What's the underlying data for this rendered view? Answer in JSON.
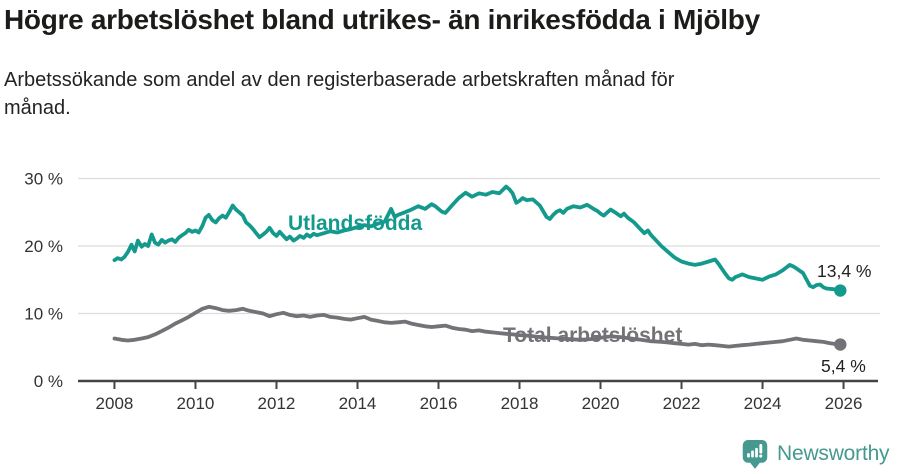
{
  "header": {
    "title": "Högre arbetslöshet bland utrikes- än inrikesfödda i Mjölby",
    "subtitle": "Arbetssökande som andel av den registerbaserade arbetskraften månad för månad."
  },
  "footer": {
    "brand": "Newsworthy"
  },
  "colors": {
    "teal": "#149a8d",
    "gray": "#737377",
    "axis": "#444444",
    "grid": "#dcdcdc",
    "tick_label": "#333333",
    "value_label": "#222222",
    "brand_teal": "#45998f"
  },
  "chart_data": {
    "type": "line",
    "title": "Högre arbetslöshet bland utrikes- än inrikesfödda i Mjölby",
    "subtitle": "Arbetssökande som andel av den registerbaserade arbetskraften månad för månad.",
    "xlabel": "",
    "ylabel": "",
    "grid": "horizontal",
    "legend_position": "inline-labels",
    "xlim": [
      2007.1,
      2026.9
    ],
    "ylim": [
      0,
      30
    ],
    "x_ticks": [
      2008,
      2010,
      2012,
      2014,
      2016,
      2018,
      2020,
      2022,
      2024,
      2026
    ],
    "x_tick_labels": [
      "2008",
      "2010",
      "2012",
      "2014",
      "2016",
      "2018",
      "2020",
      "2022",
      "2024",
      "2026"
    ],
    "y_ticks": [
      0,
      10,
      20,
      30
    ],
    "y_tick_labels": [
      "0 %",
      "10 %",
      "20 %",
      "30 %"
    ],
    "series": [
      {
        "name": "Utlandsfödda",
        "label": "Utlandsfödda",
        "color_key": "teal",
        "end_label": "13,4 %",
        "end_value": 13.4,
        "points": [
          [
            2008.0,
            17.9
          ],
          [
            2008.08,
            18.2
          ],
          [
            2008.17,
            18.0
          ],
          [
            2008.25,
            18.4
          ],
          [
            2008.33,
            19.1
          ],
          [
            2008.42,
            20.2
          ],
          [
            2008.5,
            19.2
          ],
          [
            2008.58,
            20.8
          ],
          [
            2008.67,
            19.9
          ],
          [
            2008.75,
            20.3
          ],
          [
            2008.83,
            20.0
          ],
          [
            2008.92,
            21.7
          ],
          [
            2009.0,
            20.5
          ],
          [
            2009.08,
            20.2
          ],
          [
            2009.17,
            20.9
          ],
          [
            2009.25,
            20.5
          ],
          [
            2009.33,
            20.8
          ],
          [
            2009.42,
            21.0
          ],
          [
            2009.5,
            20.6
          ],
          [
            2009.58,
            21.2
          ],
          [
            2009.67,
            21.6
          ],
          [
            2009.75,
            21.9
          ],
          [
            2009.83,
            22.4
          ],
          [
            2009.92,
            22.1
          ],
          [
            2010.0,
            22.3
          ],
          [
            2010.08,
            22.0
          ],
          [
            2010.17,
            23.0
          ],
          [
            2010.25,
            24.2
          ],
          [
            2010.33,
            24.6
          ],
          [
            2010.42,
            23.8
          ],
          [
            2010.5,
            23.5
          ],
          [
            2010.58,
            24.1
          ],
          [
            2010.67,
            24.5
          ],
          [
            2010.75,
            24.2
          ],
          [
            2010.83,
            25.0
          ],
          [
            2010.92,
            26.0
          ],
          [
            2011.0,
            25.4
          ],
          [
            2011.08,
            25.0
          ],
          [
            2011.17,
            24.5
          ],
          [
            2011.25,
            23.5
          ],
          [
            2011.33,
            23.1
          ],
          [
            2011.42,
            22.5
          ],
          [
            2011.5,
            21.9
          ],
          [
            2011.58,
            21.3
          ],
          [
            2011.67,
            21.7
          ],
          [
            2011.75,
            22.1
          ],
          [
            2011.83,
            22.7
          ],
          [
            2011.92,
            21.9
          ],
          [
            2012.0,
            21.5
          ],
          [
            2012.08,
            22.1
          ],
          [
            2012.17,
            21.5
          ],
          [
            2012.25,
            21.0
          ],
          [
            2012.33,
            21.4
          ],
          [
            2012.42,
            20.8
          ],
          [
            2012.5,
            21.1
          ],
          [
            2012.58,
            21.5
          ],
          [
            2012.67,
            21.2
          ],
          [
            2012.75,
            21.7
          ],
          [
            2012.83,
            21.4
          ],
          [
            2012.92,
            21.8
          ],
          [
            2013.0,
            21.6
          ],
          [
            2013.17,
            21.9
          ],
          [
            2013.33,
            22.2
          ],
          [
            2013.5,
            22.0
          ],
          [
            2013.67,
            22.3
          ],
          [
            2013.83,
            22.5
          ],
          [
            2014.0,
            22.8
          ],
          [
            2014.17,
            23.1
          ],
          [
            2014.33,
            22.9
          ],
          [
            2014.5,
            23.3
          ],
          [
            2014.67,
            23.6
          ],
          [
            2014.83,
            25.5
          ],
          [
            2014.92,
            24.3
          ],
          [
            2015.0,
            24.6
          ],
          [
            2015.17,
            25.0
          ],
          [
            2015.33,
            25.4
          ],
          [
            2015.5,
            25.9
          ],
          [
            2015.67,
            25.5
          ],
          [
            2015.83,
            26.2
          ],
          [
            2015.92,
            25.9
          ],
          [
            2016.0,
            25.5
          ],
          [
            2016.08,
            25.1
          ],
          [
            2016.17,
            24.9
          ],
          [
            2016.33,
            26.0
          ],
          [
            2016.5,
            27.1
          ],
          [
            2016.67,
            27.9
          ],
          [
            2016.83,
            27.3
          ],
          [
            2017.0,
            27.8
          ],
          [
            2017.17,
            27.6
          ],
          [
            2017.33,
            28.0
          ],
          [
            2017.5,
            27.8
          ],
          [
            2017.67,
            28.8
          ],
          [
            2017.75,
            28.4
          ],
          [
            2017.83,
            27.8
          ],
          [
            2017.92,
            26.4
          ],
          [
            2018.0,
            26.7
          ],
          [
            2018.08,
            27.1
          ],
          [
            2018.17,
            26.8
          ],
          [
            2018.33,
            26.9
          ],
          [
            2018.5,
            26.0
          ],
          [
            2018.67,
            24.3
          ],
          [
            2018.75,
            24.0
          ],
          [
            2018.83,
            24.6
          ],
          [
            2018.92,
            25.1
          ],
          [
            2019.0,
            25.3
          ],
          [
            2019.08,
            24.9
          ],
          [
            2019.17,
            25.5
          ],
          [
            2019.33,
            25.9
          ],
          [
            2019.5,
            25.7
          ],
          [
            2019.67,
            26.1
          ],
          [
            2019.83,
            25.5
          ],
          [
            2019.92,
            25.2
          ],
          [
            2020.0,
            24.8
          ],
          [
            2020.08,
            24.5
          ],
          [
            2020.17,
            25.0
          ],
          [
            2020.25,
            25.4
          ],
          [
            2020.33,
            25.1
          ],
          [
            2020.5,
            24.4
          ],
          [
            2020.58,
            24.8
          ],
          [
            2020.67,
            24.2
          ],
          [
            2020.83,
            23.5
          ],
          [
            2020.92,
            22.9
          ],
          [
            2021.0,
            22.4
          ],
          [
            2021.08,
            21.9
          ],
          [
            2021.17,
            22.3
          ],
          [
            2021.25,
            21.6
          ],
          [
            2021.33,
            21.1
          ],
          [
            2021.5,
            20.0
          ],
          [
            2021.67,
            19.1
          ],
          [
            2021.83,
            18.3
          ],
          [
            2022.0,
            17.7
          ],
          [
            2022.17,
            17.4
          ],
          [
            2022.33,
            17.2
          ],
          [
            2022.5,
            17.4
          ],
          [
            2022.67,
            17.7
          ],
          [
            2022.83,
            18.0
          ],
          [
            2022.92,
            17.3
          ],
          [
            2023.0,
            16.6
          ],
          [
            2023.08,
            15.9
          ],
          [
            2023.17,
            15.2
          ],
          [
            2023.25,
            15.0
          ],
          [
            2023.33,
            15.4
          ],
          [
            2023.5,
            15.8
          ],
          [
            2023.67,
            15.4
          ],
          [
            2023.83,
            15.2
          ],
          [
            2024.0,
            15.0
          ],
          [
            2024.17,
            15.5
          ],
          [
            2024.33,
            15.8
          ],
          [
            2024.5,
            16.4
          ],
          [
            2024.67,
            17.2
          ],
          [
            2024.75,
            17.0
          ],
          [
            2024.83,
            16.7
          ],
          [
            2025.0,
            16.0
          ],
          [
            2025.08,
            15.1
          ],
          [
            2025.17,
            14.1
          ],
          [
            2025.25,
            13.9
          ],
          [
            2025.33,
            14.2
          ],
          [
            2025.42,
            14.3
          ],
          [
            2025.5,
            13.9
          ],
          [
            2025.58,
            13.7
          ],
          [
            2025.75,
            13.6
          ],
          [
            2025.92,
            13.4
          ]
        ]
      },
      {
        "name": "Total arbetslöshet",
        "label": "Total arbetslöshet",
        "color_key": "gray",
        "end_label": "5,4 %",
        "end_value": 5.4,
        "points": [
          [
            2008.0,
            6.3
          ],
          [
            2008.17,
            6.1
          ],
          [
            2008.33,
            6.0
          ],
          [
            2008.5,
            6.1
          ],
          [
            2008.67,
            6.3
          ],
          [
            2008.83,
            6.5
          ],
          [
            2009.0,
            6.9
          ],
          [
            2009.17,
            7.4
          ],
          [
            2009.33,
            7.9
          ],
          [
            2009.5,
            8.5
          ],
          [
            2009.67,
            9.0
          ],
          [
            2009.83,
            9.5
          ],
          [
            2010.0,
            10.1
          ],
          [
            2010.17,
            10.7
          ],
          [
            2010.33,
            11.0
          ],
          [
            2010.5,
            10.8
          ],
          [
            2010.67,
            10.5
          ],
          [
            2010.83,
            10.4
          ],
          [
            2011.0,
            10.5
          ],
          [
            2011.17,
            10.7
          ],
          [
            2011.33,
            10.4
          ],
          [
            2011.5,
            10.2
          ],
          [
            2011.67,
            10.0
          ],
          [
            2011.83,
            9.6
          ],
          [
            2012.0,
            9.9
          ],
          [
            2012.17,
            10.1
          ],
          [
            2012.33,
            9.8
          ],
          [
            2012.5,
            9.6
          ],
          [
            2012.67,
            9.7
          ],
          [
            2012.83,
            9.5
          ],
          [
            2013.0,
            9.7
          ],
          [
            2013.17,
            9.8
          ],
          [
            2013.33,
            9.5
          ],
          [
            2013.5,
            9.4
          ],
          [
            2013.67,
            9.2
          ],
          [
            2013.83,
            9.1
          ],
          [
            2014.0,
            9.3
          ],
          [
            2014.17,
            9.5
          ],
          [
            2014.33,
            9.1
          ],
          [
            2014.5,
            8.9
          ],
          [
            2014.67,
            8.7
          ],
          [
            2014.83,
            8.6
          ],
          [
            2015.0,
            8.7
          ],
          [
            2015.17,
            8.8
          ],
          [
            2015.33,
            8.5
          ],
          [
            2015.5,
            8.3
          ],
          [
            2015.67,
            8.1
          ],
          [
            2015.83,
            8.0
          ],
          [
            2016.0,
            8.1
          ],
          [
            2016.17,
            8.2
          ],
          [
            2016.33,
            7.9
          ],
          [
            2016.5,
            7.7
          ],
          [
            2016.67,
            7.6
          ],
          [
            2016.83,
            7.4
          ],
          [
            2017.0,
            7.5
          ],
          [
            2017.17,
            7.3
          ],
          [
            2017.33,
            7.2
          ],
          [
            2017.5,
            7.1
          ],
          [
            2017.67,
            7.0
          ],
          [
            2017.83,
            6.9
          ],
          [
            2018.0,
            6.8
          ],
          [
            2018.25,
            6.7
          ],
          [
            2018.5,
            6.5
          ],
          [
            2018.75,
            6.4
          ],
          [
            2019.0,
            6.3
          ],
          [
            2019.25,
            6.2
          ],
          [
            2019.5,
            6.1
          ],
          [
            2019.75,
            6.2
          ],
          [
            2020.0,
            6.4
          ],
          [
            2020.25,
            6.6
          ],
          [
            2020.5,
            6.5
          ],
          [
            2020.75,
            6.3
          ],
          [
            2021.0,
            6.1
          ],
          [
            2021.25,
            5.9
          ],
          [
            2021.5,
            5.8
          ],
          [
            2021.67,
            5.7
          ],
          [
            2021.83,
            5.6
          ],
          [
            2022.0,
            5.5
          ],
          [
            2022.17,
            5.4
          ],
          [
            2022.33,
            5.5
          ],
          [
            2022.5,
            5.3
          ],
          [
            2022.67,
            5.4
          ],
          [
            2022.83,
            5.3
          ],
          [
            2023.0,
            5.2
          ],
          [
            2023.17,
            5.1
          ],
          [
            2023.33,
            5.2
          ],
          [
            2023.5,
            5.3
          ],
          [
            2023.67,
            5.4
          ],
          [
            2023.83,
            5.5
          ],
          [
            2024.0,
            5.6
          ],
          [
            2024.17,
            5.7
          ],
          [
            2024.33,
            5.8
          ],
          [
            2024.5,
            5.9
          ],
          [
            2024.67,
            6.1
          ],
          [
            2024.83,
            6.3
          ],
          [
            2025.0,
            6.1
          ],
          [
            2025.17,
            6.0
          ],
          [
            2025.33,
            5.9
          ],
          [
            2025.5,
            5.8
          ],
          [
            2025.67,
            5.6
          ],
          [
            2025.92,
            5.4
          ]
        ]
      }
    ]
  }
}
